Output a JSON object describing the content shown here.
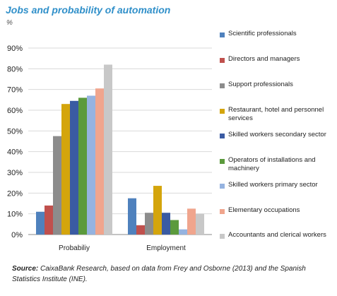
{
  "title": "Jobs and probability of automation",
  "unit": "%",
  "source_label": "Source:",
  "source_text": "CaixaBank Research, based on data from Frey and Osborne (2013) and the Spanish Statistics Institute (INE).",
  "chart_data": {
    "type": "bar",
    "title": "Jobs and probability of automation",
    "ylabel": "%",
    "ylim": [
      0,
      90
    ],
    "yticks": [
      "0%",
      "10%",
      "20%",
      "30%",
      "40%",
      "50%",
      "60%",
      "70%",
      "80%",
      "90%"
    ],
    "grid": true,
    "legend_position": "right",
    "categories": [
      "Probabiliy",
      "Employment"
    ],
    "series": [
      {
        "name": "Scientific professionals",
        "color": "#4f81bd",
        "values": [
          11,
          17.5
        ]
      },
      {
        "name": "Directors and managers",
        "color": "#c0504d",
        "values": [
          14,
          4.5
        ]
      },
      {
        "name": "Support professionals",
        "color": "#8c8c8c",
        "values": [
          47.5,
          10.5
        ]
      },
      {
        "name": "Restaurant, hotel and personnel services",
        "color": "#d4a50c",
        "values": [
          63,
          23.5
        ]
      },
      {
        "name": "Skilled workers secondary sector",
        "color": "#3a5ba3",
        "values": [
          64.5,
          10.5
        ]
      },
      {
        "name": "Operators of installations and machinery",
        "color": "#5b9a3c",
        "values": [
          66,
          7
        ]
      },
      {
        "name": "Skilled workers primary sector",
        "color": "#95b3e0",
        "values": [
          67,
          2.5
        ]
      },
      {
        "name": "Elementary occupations",
        "color": "#f0a58d",
        "values": [
          70.5,
          12.5
        ]
      },
      {
        "name": "Accountants and clerical workers",
        "color": "#c8c8c8",
        "values": [
          82,
          10
        ]
      }
    ]
  }
}
